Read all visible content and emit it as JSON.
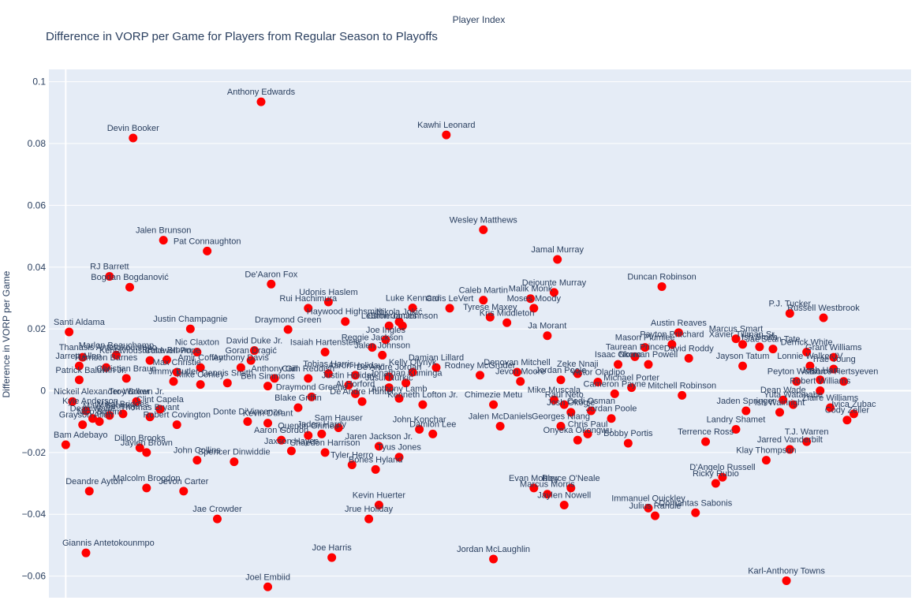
{
  "chart_data": {
    "type": "scatter",
    "title": "Difference in VORP per Game for Players from Regular Season to Playoffs",
    "xlabel": "Player Index",
    "ylabel": "Difference in VORP per Game",
    "xlim": [
      -5,
      251
    ],
    "ylim": [
      -0.067,
      0.104
    ],
    "yticks": [
      -0.06,
      -0.04,
      -0.02,
      0,
      0.02,
      0.04,
      0.06,
      0.08,
      0.1
    ],
    "ytick_labels": [
      "−0.06",
      "−0.04",
      "−0.02",
      "0",
      "0.02",
      "0.04",
      "0.06",
      "0.08",
      "0.1"
    ],
    "grid": true,
    "marker_color": "#ff0000",
    "background": "#e5ecf6",
    "points": [
      {
        "label": "Anthony Edwards",
        "x": 58,
        "y": 0.0935
      },
      {
        "label": "Devin Booker",
        "x": 20,
        "y": 0.0818
      },
      {
        "label": "Kawhi Leonard",
        "x": 113,
        "y": 0.0828
      },
      {
        "label": "Wesley Matthews",
        "x": 124,
        "y": 0.0521
      },
      {
        "label": "Jalen Brunson",
        "x": 29,
        "y": 0.0487
      },
      {
        "label": "Pat Connaughton",
        "x": 42,
        "y": 0.0452
      },
      {
        "label": "Jamal Murray",
        "x": 146,
        "y": 0.0425
      },
      {
        "label": "RJ Barrett",
        "x": 13,
        "y": 0.037
      },
      {
        "label": "Bogdan Bogdanović",
        "x": 19,
        "y": 0.0335
      },
      {
        "label": "De'Aaron Fox",
        "x": 61,
        "y": 0.0345
      },
      {
        "label": "Duncan Robinson",
        "x": 177,
        "y": 0.0337
      },
      {
        "label": "Dejounte Murray",
        "x": 145,
        "y": 0.0318
      },
      {
        "label": "Malik Monk",
        "x": 138,
        "y": 0.0298
      },
      {
        "label": "Moses Moody",
        "x": 139,
        "y": 0.0267
      },
      {
        "label": "Caleb Martin",
        "x": 124,
        "y": 0.0293
      },
      {
        "label": "Udonis Haslem",
        "x": 78,
        "y": 0.0287
      },
      {
        "label": "Rui Hachimura",
        "x": 72,
        "y": 0.0267
      },
      {
        "label": "Luke Kennard",
        "x": 103,
        "y": 0.0268
      },
      {
        "label": "Caris LeVert",
        "x": 114,
        "y": 0.0267
      },
      {
        "label": "Tyrese Maxey",
        "x": 126,
        "y": 0.0238
      },
      {
        "label": "Haywood Highsmith",
        "x": 83,
        "y": 0.0224
      },
      {
        "label": "Nikola Jokić",
        "x": 99,
        "y": 0.0223
      },
      {
        "label": "Kris Middleton",
        "x": 131,
        "y": 0.022
      },
      {
        "label": "P.J. Tucker",
        "x": 215,
        "y": 0.025
      },
      {
        "label": "Russell Westbrook",
        "x": 225,
        "y": 0.0236
      },
      {
        "label": "LeBron James",
        "x": 96,
        "y": 0.021
      },
      {
        "label": "Cameron Johnson",
        "x": 100,
        "y": 0.021
      },
      {
        "label": "Santi Aldama",
        "x": 1,
        "y": 0.019
      },
      {
        "label": "Justin Champagnie",
        "x": 37,
        "y": 0.02
      },
      {
        "label": "Draymond Green",
        "x": 66,
        "y": 0.0198
      },
      {
        "label": "Austin Reaves",
        "x": 182,
        "y": 0.0188
      },
      {
        "label": "Ja Morant",
        "x": 143,
        "y": 0.0178
      },
      {
        "label": "Marcus Smart",
        "x": 199,
        "y": 0.0168
      },
      {
        "label": "Payton Pritchard",
        "x": 180,
        "y": 0.015
      },
      {
        "label": "Joe Ingles",
        "x": 95,
        "y": 0.0165
      },
      {
        "label": "Reggie Jackson",
        "x": 91,
        "y": 0.014
      },
      {
        "label": "Mason Plumlee",
        "x": 172,
        "y": 0.014
      },
      {
        "label": "Xavier Tillman Sr.",
        "x": 201,
        "y": 0.015
      },
      {
        "label": "Ish Smith",
        "x": 206,
        "y": 0.0142
      },
      {
        "label": "Jae'Sean Tate",
        "x": 210,
        "y": 0.0135
      },
      {
        "label": "Nic Claxton",
        "x": 39,
        "y": 0.0125
      },
      {
        "label": "David Duke Jr.",
        "x": 56,
        "y": 0.013
      },
      {
        "label": "Marlon Beauchamp",
        "x": 15,
        "y": 0.0115
      },
      {
        "label": "Isaiah Hartenstein",
        "x": 77,
        "y": 0.0125
      },
      {
        "label": "Taurean Prince",
        "x": 169,
        "y": 0.011
      },
      {
        "label": "David Roddy",
        "x": 185,
        "y": 0.0105
      },
      {
        "label": "Derrick White",
        "x": 220,
        "y": 0.0125
      },
      {
        "label": "Grant Williams",
        "x": 228,
        "y": 0.0108
      },
      {
        "label": "Jalen Johnson",
        "x": 94,
        "y": 0.0115
      },
      {
        "label": "Thanasis Antetokounmpo",
        "x": 5,
        "y": 0.0108
      },
      {
        "label": "Kentavious Caldwell-Pope",
        "x": 25,
        "y": 0.0098
      },
      {
        "label": "Goran Dragić",
        "x": 55,
        "y": 0.0098
      },
      {
        "label": "Bruce Brown",
        "x": 30,
        "y": 0.01
      },
      {
        "label": "Jarrett Allen",
        "x": 4,
        "y": 0.008
      },
      {
        "label": "Harrison Barnes",
        "x": 12,
        "y": 0.0075
      },
      {
        "label": "Isaac Okoro",
        "x": 164,
        "y": 0.0085
      },
      {
        "label": "Norman Powell",
        "x": 173,
        "y": 0.0085
      },
      {
        "label": "Jayson Tatum",
        "x": 201,
        "y": 0.008
      },
      {
        "label": "Lonnie Walker IV",
        "x": 221,
        "y": 0.008
      },
      {
        "label": "Trae Young",
        "x": 228,
        "y": 0.007
      },
      {
        "label": "Anthony Davis",
        "x": 52,
        "y": 0.0075
      },
      {
        "label": "Amir Coffey",
        "x": 40,
        "y": 0.0075
      },
      {
        "label": "Tobias Harris",
        "x": 78,
        "y": 0.0055
      },
      {
        "label": "Max Christie",
        "x": 33,
        "y": 0.006
      },
      {
        "label": "Jimmy Butler",
        "x": 32,
        "y": 0.003
      },
      {
        "label": "Zeke Nnaji",
        "x": 152,
        "y": 0.0055
      },
      {
        "label": "Donovan Mitchell",
        "x": 134,
        "y": 0.006
      },
      {
        "label": "Aaron Holiday",
        "x": 86,
        "y": 0.005
      },
      {
        "label": "De'Andre Jordan",
        "x": 96,
        "y": 0.0045
      },
      {
        "label": "Christian Braun",
        "x": 18,
        "y": 0.004
      },
      {
        "label": "Patrick Baldwin Jr.",
        "x": 4,
        "y": 0.0035
      },
      {
        "label": "Kelly Olynyk",
        "x": 103,
        "y": 0.006
      },
      {
        "label": "Damian Lillard",
        "x": 110,
        "y": 0.0075
      },
      {
        "label": "Rodney McGruder",
        "x": 123,
        "y": 0.005
      },
      {
        "label": "Cam Reddish",
        "x": 72,
        "y": 0.004
      },
      {
        "label": "Mike Conley",
        "x": 40,
        "y": 0.002
      },
      {
        "label": "Anthony Gill",
        "x": 62,
        "y": 0.004
      },
      {
        "label": "Dennis Smith",
        "x": 48,
        "y": 0.0025
      },
      {
        "label": "Ben Simmons",
        "x": 60,
        "y": 0.0015
      },
      {
        "label": "Jonathan Kuminga",
        "x": 101,
        "y": 0.0025
      },
      {
        "label": "Justin Holiday",
        "x": 84,
        "y": 0.0018
      },
      {
        "label": "Al Horford",
        "x": 86,
        "y": -0.001
      },
      {
        "label": "Jusuf Nurkić",
        "x": 96,
        "y": 0.001
      },
      {
        "label": "Victor Oladipo",
        "x": 158,
        "y": 0.0028
      },
      {
        "label": "Jordan Poole",
        "x": 147,
        "y": 0.0035
      },
      {
        "label": "Jevon Moore",
        "x": 135,
        "y": 0.003
      },
      {
        "label": "Mike Muscala",
        "x": 145,
        "y": -0.003
      },
      {
        "label": "Cameron Payne",
        "x": 163,
        "y": -0.001
      },
      {
        "label": "Michael Porter",
        "x": 168,
        "y": 0.001
      },
      {
        "label": "Mitchell Robinson",
        "x": 183,
        "y": -0.0015
      },
      {
        "label": "Peyton Watson",
        "x": 217,
        "y": 0.003
      },
      {
        "label": "Josh Hart",
        "x": 224,
        "y": 0.0035
      },
      {
        "label": "Bruce Hertsyeven",
        "x": 231,
        "y": 0.003
      },
      {
        "label": "Robert Williams",
        "x": 224,
        "y": 0.0
      },
      {
        "label": "Nickeil Alexander-Walker",
        "x": 2,
        "y": -0.0035
      },
      {
        "label": "Kyle Anderson",
        "x": 6,
        "y": -0.0065
      },
      {
        "label": "Dean Wade",
        "x": 8,
        "y": -0.009
      },
      {
        "label": "Malik Beasley",
        "x": 13,
        "y": -0.008
      },
      {
        "label": "Mikal Bridges",
        "x": 17,
        "y": -0.0075
      },
      {
        "label": "Troy Brown Jr.",
        "x": 21,
        "y": -0.0035
      },
      {
        "label": "Thomas Bryant",
        "x": 25,
        "y": -0.0085
      },
      {
        "label": "Clint Capela",
        "x": 28,
        "y": -0.006
      },
      {
        "label": "Nico Batum",
        "x": 10,
        "y": -0.01
      },
      {
        "label": "Grayson Allen",
        "x": 5,
        "y": -0.011
      },
      {
        "label": "Robert Covington",
        "x": 33,
        "y": -0.011
      },
      {
        "label": "Donte DiVincenzo",
        "x": 54,
        "y": -0.01
      },
      {
        "label": "Kevin Durant",
        "x": 60,
        "y": -0.0105
      },
      {
        "label": "Blake Griffin",
        "x": 69,
        "y": -0.0055
      },
      {
        "label": "Draymond Greene",
        "x": 73,
        "y": -0.002
      },
      {
        "label": "De'Andre Hunter",
        "x": 88,
        "y": -0.0035
      },
      {
        "label": "Anthony Lamb",
        "x": 99,
        "y": -0.0025
      },
      {
        "label": "Kenneth Lofton Jr.",
        "x": 106,
        "y": -0.0045
      },
      {
        "label": "Chimezie Metu",
        "x": 127,
        "y": -0.0045
      },
      {
        "label": "Bam Adebayo",
        "x": 0,
        "y": -0.0175
      },
      {
        "label": "Dillon Brooks",
        "x": 22,
        "y": -0.0185
      },
      {
        "label": "Jaylen Brown",
        "x": 24,
        "y": -0.02
      },
      {
        "label": "John Collins",
        "x": 39,
        "y": -0.0225
      },
      {
        "label": "Spencer Dinwiddie",
        "x": 50,
        "y": -0.023
      },
      {
        "label": "Aaron Gordon",
        "x": 64,
        "y": -0.016
      },
      {
        "label": "Quentin Grimes",
        "x": 72,
        "y": -0.0145
      },
      {
        "label": "Jaden Hardy",
        "x": 76,
        "y": -0.014
      },
      {
        "label": "Sam Hauser",
        "x": 81,
        "y": -0.012
      },
      {
        "label": "Jaxson Hayes",
        "x": 67,
        "y": -0.0195
      },
      {
        "label": "Shaedon Harrison",
        "x": 77,
        "y": -0.02
      },
      {
        "label": "Tyler Herro",
        "x": 85,
        "y": -0.024
      },
      {
        "label": "Bones Hyland",
        "x": 92,
        "y": -0.0255
      },
      {
        "label": "Jaren Jackson Jr.",
        "x": 93,
        "y": -0.018
      },
      {
        "label": "Tyus Jones",
        "x": 99,
        "y": -0.0215
      },
      {
        "label": "John Konchar",
        "x": 105,
        "y": -0.0125
      },
      {
        "label": "Damion Lee",
        "x": 109,
        "y": -0.014
      },
      {
        "label": "Jalen McDaniels",
        "x": 129,
        "y": -0.0115
      },
      {
        "label": "Raul Neto",
        "x": 148,
        "y": -0.0045
      },
      {
        "label": "Josh Okogie",
        "x": 150,
        "y": -0.007
      },
      {
        "label": "Cedi Osman",
        "x": 156,
        "y": -0.0065
      },
      {
        "label": "Georges Niang",
        "x": 147,
        "y": -0.0115
      },
      {
        "label": "Chris Paul",
        "x": 155,
        "y": -0.014
      },
      {
        "label": "Onyeka Okongwu",
        "x": 152,
        "y": -0.016
      },
      {
        "label": "Jordan Poole",
        "x": 162,
        "y": -0.009
      },
      {
        "label": "Bobby Portis",
        "x": 167,
        "y": -0.017
      },
      {
        "label": "Terrence Ross",
        "x": 190,
        "y": -0.0165
      },
      {
        "label": "Landry Shamet",
        "x": 199,
        "y": -0.0125
      },
      {
        "label": "Jaden Springer",
        "x": 202,
        "y": -0.0065
      },
      {
        "label": "Ish Wainright",
        "x": 212,
        "y": -0.007
      },
      {
        "label": "Yuta Watanabe",
        "x": 216,
        "y": -0.0045
      },
      {
        "label": "Dean Wade",
        "x": 213,
        "y": -0.003
      },
      {
        "label": "Ziaire Williams",
        "x": 227,
        "y": -0.0055
      },
      {
        "label": "Cody Zeller",
        "x": 232,
        "y": -0.0095
      },
      {
        "label": "Ivica Zubac",
        "x": 234,
        "y": -0.0075
      },
      {
        "label": "Klay Thompson",
        "x": 208,
        "y": -0.0225
      },
      {
        "label": "Jarred Vanderbilt",
        "x": 215,
        "y": -0.019
      },
      {
        "label": "T.J. Warren",
        "x": 220,
        "y": -0.0165
      },
      {
        "label": "D'Angelo Russell",
        "x": 195,
        "y": -0.028
      },
      {
        "label": "Ricky Rubio",
        "x": 193,
        "y": -0.03
      },
      {
        "label": "Deandre Ayton",
        "x": 7,
        "y": -0.0325
      },
      {
        "label": "Malcolm Brogdon",
        "x": 24,
        "y": -0.0315
      },
      {
        "label": "Jevon Carter",
        "x": 35,
        "y": -0.0325
      },
      {
        "label": "Jae Crowder",
        "x": 45,
        "y": -0.0415
      },
      {
        "label": "Kevin Huerter",
        "x": 93,
        "y": -0.037
      },
      {
        "label": "Jrue Holiday",
        "x": 90,
        "y": -0.0415
      },
      {
        "label": "Evan Mobley",
        "x": 139,
        "y": -0.0315
      },
      {
        "label": "Marcus Morris",
        "x": 143,
        "y": -0.0335
      },
      {
        "label": "Royce O'Neale",
        "x": 150,
        "y": -0.0315
      },
      {
        "label": "Jaylen Nowell",
        "x": 148,
        "y": -0.037
      },
      {
        "label": "Immanuel Quickley",
        "x": 173,
        "y": -0.038
      },
      {
        "label": "Julius Randle",
        "x": 175,
        "y": -0.0405
      },
      {
        "label": "Domantas Sabonis",
        "x": 187,
        "y": -0.0395
      },
      {
        "label": "Giannis Antetokounmpo",
        "x": 6,
        "y": -0.0525
      },
      {
        "label": "Joe Harris",
        "x": 79,
        "y": -0.054
      },
      {
        "label": "Jordan McLaughlin",
        "x": 127,
        "y": -0.0545
      },
      {
        "label": "Joel Embiid",
        "x": 60,
        "y": -0.0635
      },
      {
        "label": "Karl-Anthony Towns",
        "x": 214,
        "y": -0.0615
      }
    ]
  }
}
